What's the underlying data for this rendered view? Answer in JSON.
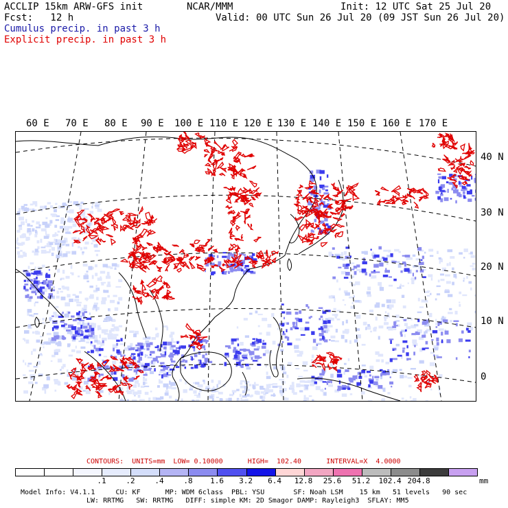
{
  "header": {
    "line1_left": "ACCLIP 15km ARW-GFS init",
    "line1_center": "NCAR/MMM",
    "line1_right": "Init: 12 UTC Sat 25 Jul 20",
    "line2_left": "Fcst:   12 h",
    "line2_right": "Valid: 00 UTC Sun 26 Jul 20 (09 JST Sun 26 Jul 20)",
    "line3": "Cumulus precip. in past 3 h",
    "line4": "Explicit precip. in past 3 h",
    "line3_color": "#1a1aa8",
    "line4_color": "#e00000"
  },
  "map": {
    "lon_labels": [
      "60 E",
      "70 E",
      "80 E",
      "90 E",
      "100 E",
      "110 E",
      "120 E",
      "130 E",
      "140 E",
      "150 E",
      "160 E",
      "170 E"
    ],
    "lat_labels": [
      "40 N",
      "30 N",
      "20 N",
      "10 N",
      "0"
    ]
  },
  "legend": {
    "contours_line": "CONTOURS:  UNITS=mm  LOW= 0.10000      HIGH=  102.40      INTERVAL=X  4.0000",
    "contours_color": "#cc0000",
    "colors": [
      "#ffffff",
      "#ffffff",
      "#f4f6fe",
      "#e6ecfd",
      "#d4defb",
      "#b4b4f4",
      "#8c8cf0",
      "#5050f0",
      "#1414e8",
      "#ffd6d6",
      "#f2a6c2",
      "#ee72b0",
      "#bcbcbc",
      "#8c8c8c",
      "#3c3c3c",
      "#c8a0f0"
    ],
    "ticks": [
      ".1",
      ".2",
      ".4",
      ".8",
      "1.6",
      "3.2",
      "6.4",
      "12.8",
      "25.6",
      "51.2",
      "102.4",
      "204.8"
    ],
    "unit": "mm"
  },
  "footer": {
    "line1": "Model Info: V4.1.1     CU: KF      MP: WDM 6class  PBL: YSU       SF: Noah LSM    15 km   51 levels   90 sec",
    "line2": "LW: RRTMG   SW: RRTMG   DIFF: simple KM: 2D Smagor DAMP: Rayleigh3  SFLAY: MM5"
  }
}
